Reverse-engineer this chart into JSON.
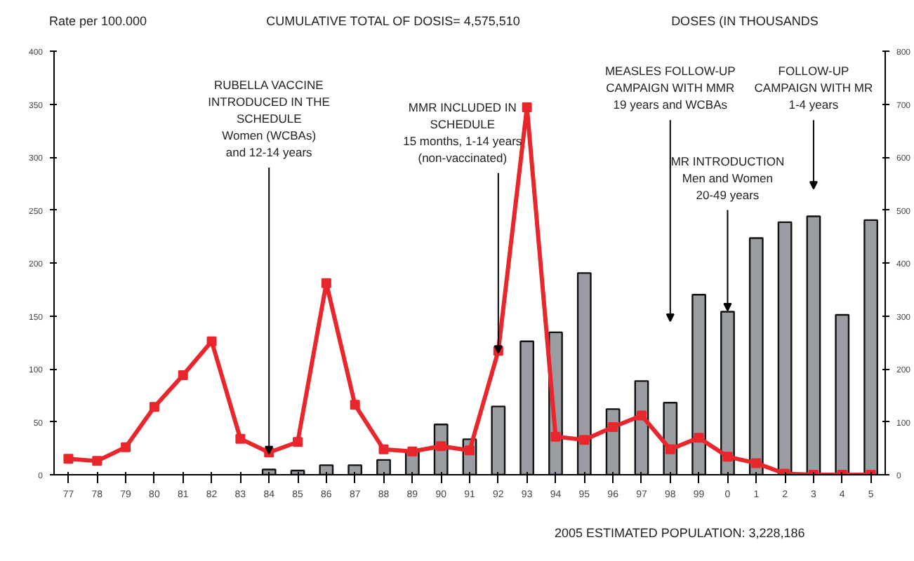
{
  "chart_data": {
    "type": "bar",
    "title": "CUMULATIVE TOTAL OF DOSIS= 4,575,510",
    "ylabel": "Rate per 100.000",
    "y2label": "DOSES (IN THOUSANDS",
    "categories": [
      "77",
      "78",
      "79",
      "80",
      "81",
      "82",
      "83",
      "84",
      "85",
      "86",
      "87",
      "88",
      "89",
      "90",
      "91",
      "92",
      "93",
      "94",
      "95",
      "96",
      "97",
      "98",
      "99",
      "0",
      "1",
      "2",
      "3",
      "4",
      "5"
    ],
    "series": [
      {
        "axis": "y2",
        "color": "#9a9ea3",
        "values": [
          null,
          null,
          null,
          null,
          null,
          null,
          null,
          10,
          8,
          18,
          18,
          28,
          45,
          95,
          67,
          129,
          252,
          269,
          381,
          124,
          177,
          136,
          340,
          308,
          447,
          477,
          488,
          302,
          481
        ]
      },
      {
        "type": "line",
        "color": "#e8262b",
        "marker": "square",
        "values": [
          15,
          13,
          26,
          64,
          94,
          126,
          34,
          21,
          31,
          181,
          66,
          24,
          22,
          27,
          23,
          117,
          347,
          36,
          33,
          45,
          56,
          24,
          35,
          17,
          11,
          1,
          0,
          0,
          0
        ]
      }
    ],
    "ylim": [
      0,
      400
    ],
    "yticks": [
      0,
      50,
      100,
      150,
      200,
      250,
      300,
      350,
      400
    ],
    "y2lim": [
      0,
      800
    ],
    "y2ticks": [
      0,
      100,
      200,
      300,
      400,
      500,
      600,
      700,
      800
    ],
    "grid": false,
    "annotations": [
      {
        "text": "RUBELLA VACCINE\nINTRODUCED IN THE\nSCHEDULE\nWomen (WCBAs)\nand 12-14 years",
        "x": "84",
        "y": 20
      },
      {
        "text": "MMR INCLUDED IN\nSCHEDULE\n15 months, 1-14 years\n(non-vaccinated)",
        "x": "92",
        "y": 115
      },
      "MEASLES FOLLOW-UP\nCAMPAIGN WITH MMR\n19 years and WCBAs",
      {
        "text": "MR INTRODUCTION\nMen and Women\n20-49 years",
        "x": "0",
        "y": 155
      },
      "FOLLOW-UP\nCAMPAIGN WITH MR\n1-4 years",
      "2005 ESTIMATED POPULATION: 3,228,186"
    ]
  }
}
